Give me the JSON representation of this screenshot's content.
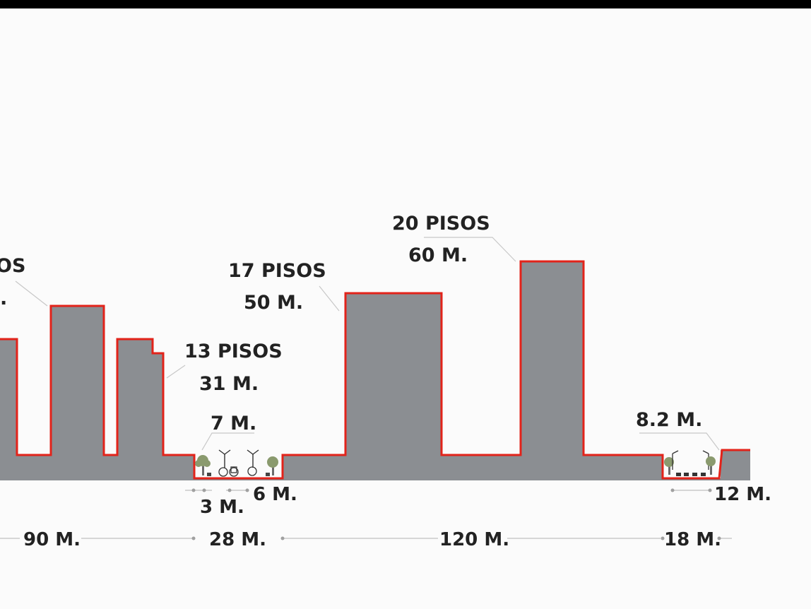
{
  "colors": {
    "building_fill": "#8b8e92",
    "profile_line": "#e2231a",
    "text": "#222222",
    "background": "#fbfbfb",
    "tree": "#8a9a6e"
  },
  "height_labels": {
    "left_cut_floors": "OS",
    "left_cut_height": ".",
    "b13_floors": "13 PISOS",
    "b13_height": "31 M.",
    "b17_floors": "17 PISOS",
    "b17_height": "50 M.",
    "b20_floors": "20 PISOS",
    "b20_height": "60 M.",
    "street1_height": "7 M.",
    "street2_height": "8.2 M."
  },
  "width_labels": {
    "sub_3": "3 M.",
    "sub_6": "6 M.",
    "sub_12": "12 M.",
    "w90": "90 M.",
    "w28": "28 M.",
    "w120": "120 M.",
    "w18": "18 M."
  }
}
